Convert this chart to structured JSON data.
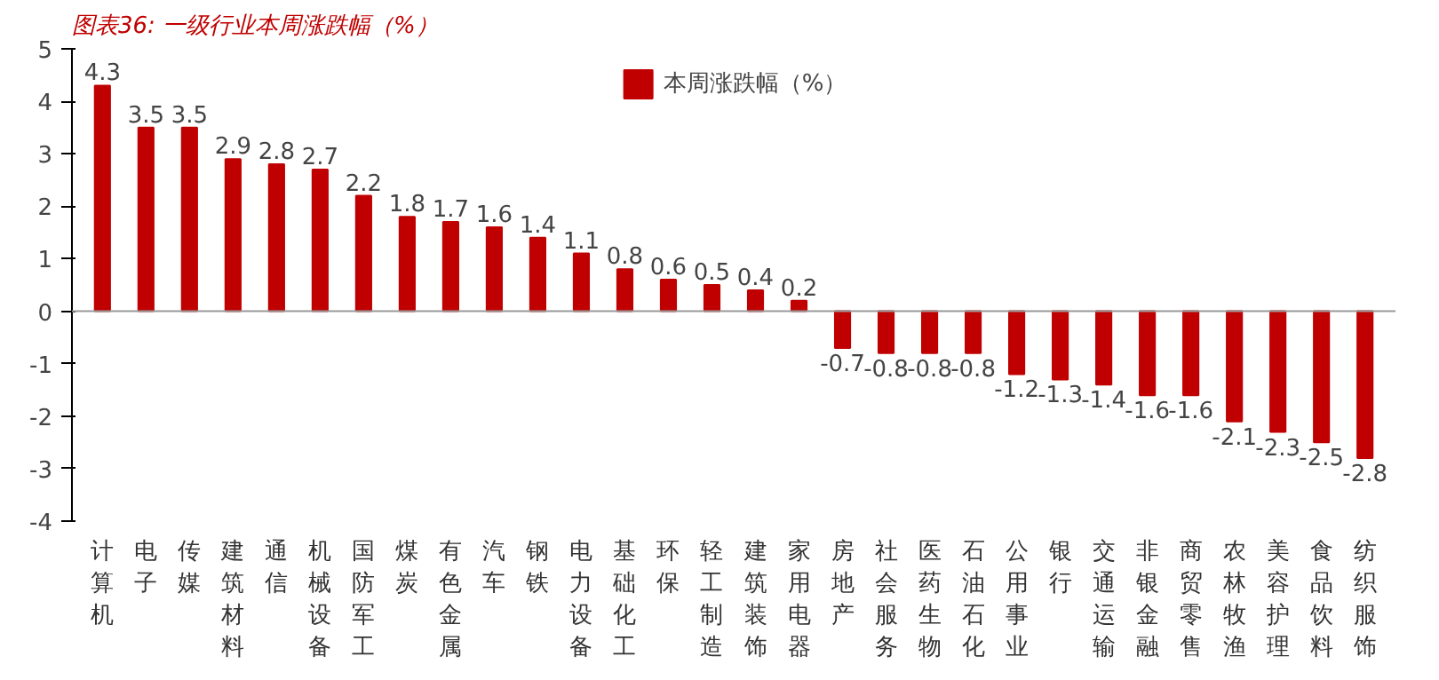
{
  "chart_data": {
    "type": "bar",
    "title": "图表36: 一级行业本周涨跌幅（%）",
    "categories": [
      "计算机",
      "电子",
      "传媒",
      "建筑材料",
      "通信",
      "机械设备",
      "国防军工",
      "煤炭",
      "有色金属",
      "汽车",
      "钢铁",
      "电力设备",
      "基础化工",
      "环保",
      "轻工制造",
      "建筑装饰",
      "家用电器",
      "房地产",
      "社会服务",
      "医药生物",
      "石油石化",
      "公用事业",
      "银行",
      "交通运输",
      "非银金融",
      "商贸零售",
      "农林牧渔",
      "美容护理",
      "食品饮料",
      "纺织服饰"
    ],
    "series": [
      {
        "name": "本周涨跌幅（%）",
        "color": "#c00000",
        "values": [
          4.3,
          3.5,
          3.5,
          2.9,
          2.8,
          2.7,
          2.2,
          1.8,
          1.7,
          1.6,
          1.4,
          1.1,
          0.8,
          0.6,
          0.5,
          0.4,
          0.2,
          -0.7,
          -0.8,
          -0.8,
          -0.8,
          -1.2,
          -1.3,
          -1.4,
          -1.6,
          -1.6,
          -2.1,
          -2.3,
          -2.5,
          -2.8
        ]
      }
    ],
    "ylim": [
      -4,
      5
    ],
    "yticks": [
      -4,
      -3,
      -2,
      -1,
      0,
      1,
      2,
      3,
      4,
      5
    ],
    "data_labels": true,
    "legend": "top"
  }
}
